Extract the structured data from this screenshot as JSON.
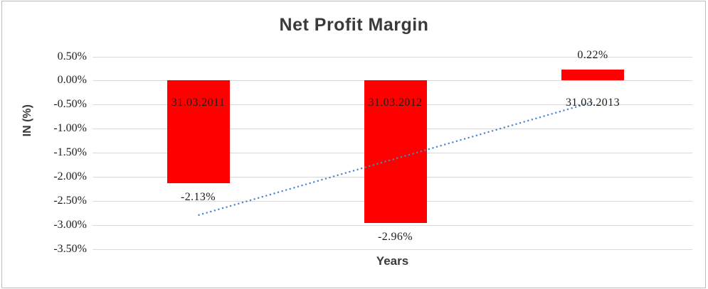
{
  "window": {
    "background": "#ffffff",
    "frame_border_color": "#bdbdbd"
  },
  "chart_data": {
    "type": "bar",
    "title": "Net Profit Margin",
    "xlabel": "Years",
    "ylabel": "IN (%)",
    "categories": [
      "31.03.2011",
      "31.03.2012",
      "31.03.2013"
    ],
    "series": [
      {
        "name": "Net Profit Margin",
        "values": [
          -2.13,
          -2.96,
          0.22
        ]
      }
    ],
    "data_labels": [
      "-2.13%",
      "-2.96%",
      "0.22%"
    ],
    "y_ticks": [
      "0.50%",
      "0.00%",
      "-0.50%",
      "-1.00%",
      "-1.50%",
      "-2.00%",
      "-2.50%",
      "-3.00%",
      "-3.50%"
    ],
    "y_tick_values": [
      0.5,
      0.0,
      -0.5,
      -1.0,
      -1.5,
      -2.0,
      -2.5,
      -3.0,
      -3.5
    ],
    "ylim": [
      -3.5,
      0.5
    ],
    "grid": true,
    "legend": "none",
    "bar_color": "#ff0000",
    "grid_color": "#d9d9d9",
    "text_color": "#1c1c1c",
    "trendline": {
      "type": "linear",
      "style": "dotted",
      "color": "#4a86c8",
      "start_value": -2.8,
      "end_value": -0.45
    }
  }
}
